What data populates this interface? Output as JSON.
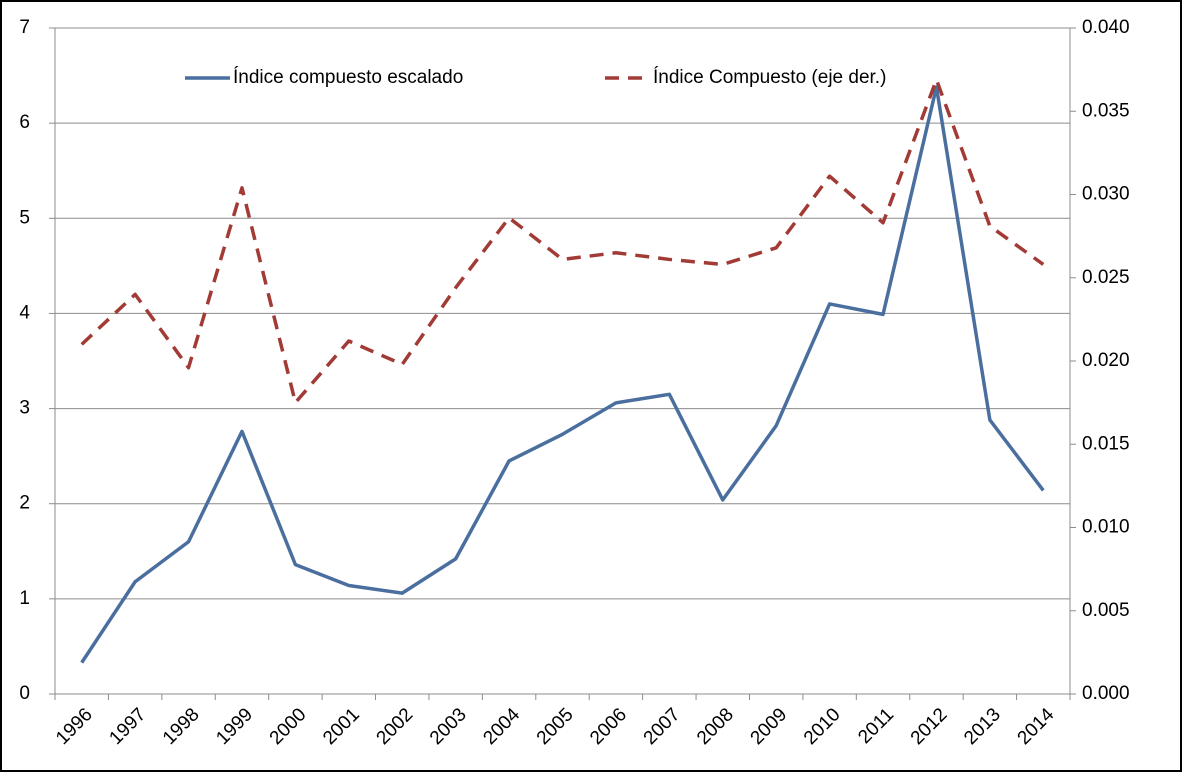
{
  "chart_data": {
    "type": "line",
    "categories": [
      "1996",
      "1997",
      "1998",
      "1999",
      "2000",
      "2001",
      "2002",
      "2003",
      "2004",
      "2005",
      "2006",
      "2007",
      "2008",
      "2009",
      "2010",
      "2011",
      "2012",
      "2013",
      "2014"
    ],
    "series": [
      {
        "name": "Índice compuesto escalado",
        "color": "#4a6f9f",
        "dash": false,
        "values": [
          0.33,
          1.18,
          1.6,
          2.76,
          1.36,
          1.14,
          1.06,
          1.42,
          2.45,
          2.73,
          3.06,
          3.15,
          2.04,
          2.82,
          4.1,
          3.99,
          6.38,
          2.88,
          2.14
        ]
      },
      {
        "name": "Índice Compuesto (eje der.)",
        "color": "#a23b36",
        "dash": true,
        "axis": "y2",
        "values": [
          0.021,
          0.024,
          0.0196,
          0.0304,
          0.0175,
          0.0212,
          0.0198,
          0.0244,
          0.0286,
          0.0261,
          0.0265,
          0.0261,
          0.0258,
          0.0268,
          0.0311,
          0.0283,
          0.0369,
          0.0281,
          0.0258
        ]
      }
    ],
    "ylim": [
      0,
      7
    ],
    "yticks": [
      0,
      1,
      2,
      3,
      4,
      5,
      6,
      7
    ],
    "y2lim": [
      0,
      0.04
    ],
    "y2ticks": [
      {
        "value": 0,
        "label": "0.000"
      },
      {
        "value": 0.005,
        "label": "0.005"
      },
      {
        "value": 0.01,
        "label": "0.010"
      },
      {
        "value": 0.015,
        "label": "0.015"
      },
      {
        "value": 0.02,
        "label": "0.020"
      },
      {
        "value": 0.025,
        "label": "0.025"
      },
      {
        "value": 0.03,
        "label": "0.030"
      },
      {
        "value": 0.035,
        "label": "0.035"
      },
      {
        "value": 0.04,
        "label": "0.040"
      }
    ],
    "grid": true,
    "legend": "top"
  }
}
